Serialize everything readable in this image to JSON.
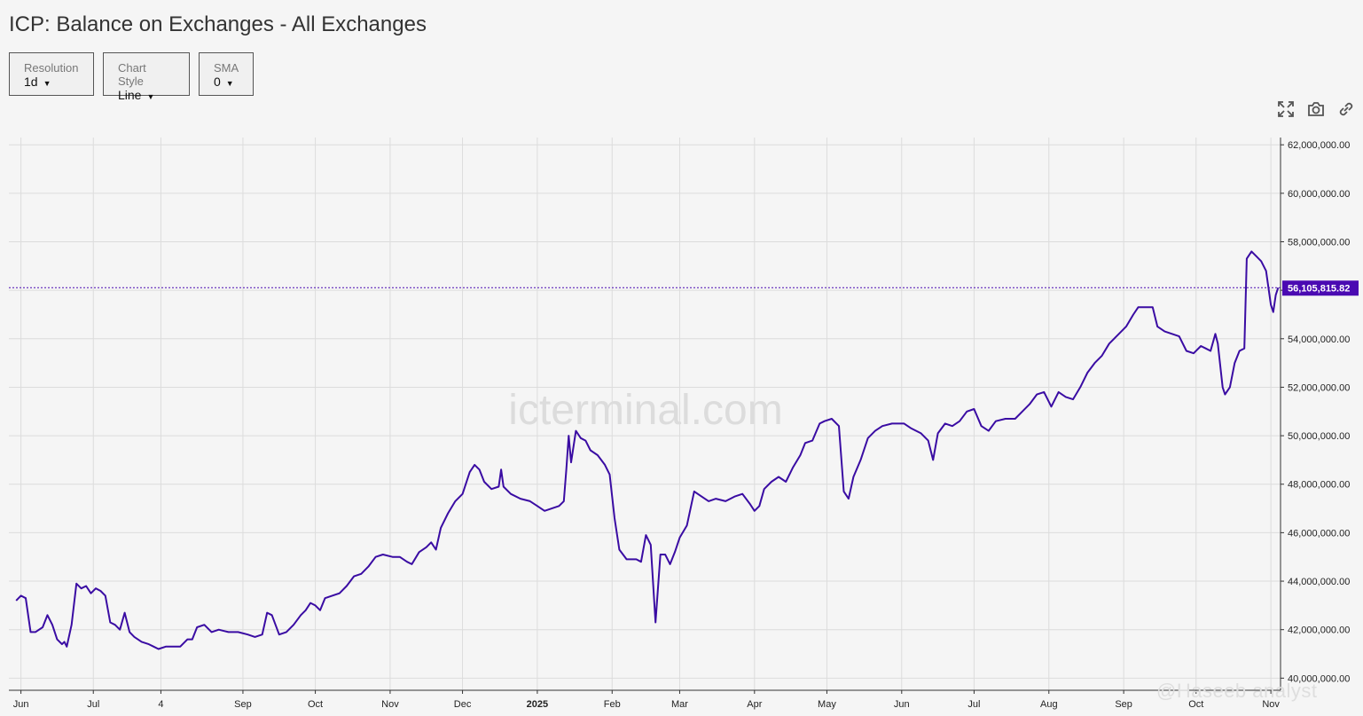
{
  "title": "ICP: Balance on Exchanges - All Exchanges",
  "controls": {
    "resolution": {
      "label": "Resolution",
      "value": "1d"
    },
    "chart_style": {
      "label": "Chart Style",
      "value": "Line"
    },
    "sma": {
      "label": "SMA",
      "value": "0"
    }
  },
  "toolbar": {
    "icons": [
      "fullscreen-icon",
      "camera-icon",
      "link-icon"
    ]
  },
  "watermark": "icterminal.com",
  "credit": "@Haseeb analyst",
  "colors": {
    "line": "#3a0ca3",
    "price_tag": "#4a0ab2",
    "grid": "#dcdcdc",
    "background": "#f5f5f5"
  },
  "chart_data": {
    "type": "line",
    "title": "ICP: Balance on Exchanges - All Exchanges",
    "ylim": [
      39500000,
      62300000
    ],
    "y_ticks": [
      40000000,
      42000000,
      44000000,
      46000000,
      48000000,
      50000000,
      52000000,
      54000000,
      56000000,
      58000000,
      60000000,
      62000000
    ],
    "y_tick_labels": [
      "40,000,000.00",
      "42,000,000.00",
      "44,000,000.00",
      "46,000,000.00",
      "48,000,000.00",
      "50,000,000.00",
      "52,000,000.00",
      "54,000,000.00",
      "56,000,000.00",
      "58,000,000.00",
      "60,000,000.00",
      "62,000,000.00"
    ],
    "x_range": [
      "2024-05-27",
      "2025-11-05"
    ],
    "x_ticks": [
      {
        "date": "2024-06-01",
        "label": "Jun"
      },
      {
        "date": "2024-07-01",
        "label": "Jul"
      },
      {
        "date": "2024-07-29",
        "label": "4"
      },
      {
        "date": "2024-09-01",
        "label": "Sep"
      },
      {
        "date": "2024-10-01",
        "label": "Oct"
      },
      {
        "date": "2024-11-01",
        "label": "Nov"
      },
      {
        "date": "2024-12-01",
        "label": "Dec"
      },
      {
        "date": "2025-01-01",
        "label": "2025",
        "bold": true
      },
      {
        "date": "2025-02-01",
        "label": "Feb"
      },
      {
        "date": "2025-03-01",
        "label": "Mar"
      },
      {
        "date": "2025-04-01",
        "label": "Apr"
      },
      {
        "date": "2025-05-01",
        "label": "May"
      },
      {
        "date": "2025-06-01",
        "label": "Jun"
      },
      {
        "date": "2025-07-01",
        "label": "Jul"
      },
      {
        "date": "2025-08-01",
        "label": "Aug"
      },
      {
        "date": "2025-09-01",
        "label": "Sep"
      },
      {
        "date": "2025-10-01",
        "label": "Oct"
      },
      {
        "date": "2025-11-01",
        "label": "Nov"
      }
    ],
    "last_value": 56105815.82,
    "last_value_label": "56,105,815.82",
    "grid": true,
    "series": [
      {
        "points": [
          [
            "2024-05-30",
            43200000
          ],
          [
            "2024-06-01",
            43400000
          ],
          [
            "2024-06-03",
            43300000
          ],
          [
            "2024-06-05",
            41900000
          ],
          [
            "2024-06-07",
            41900000
          ],
          [
            "2024-06-10",
            42100000
          ],
          [
            "2024-06-12",
            42600000
          ],
          [
            "2024-06-14",
            42200000
          ],
          [
            "2024-06-16",
            41600000
          ],
          [
            "2024-06-18",
            41400000
          ],
          [
            "2024-06-19",
            41500000
          ],
          [
            "2024-06-20",
            41300000
          ],
          [
            "2024-06-22",
            42200000
          ],
          [
            "2024-06-24",
            43900000
          ],
          [
            "2024-06-26",
            43700000
          ],
          [
            "2024-06-28",
            43800000
          ],
          [
            "2024-06-30",
            43500000
          ],
          [
            "2024-07-02",
            43700000
          ],
          [
            "2024-07-04",
            43600000
          ],
          [
            "2024-07-06",
            43400000
          ],
          [
            "2024-07-08",
            42300000
          ],
          [
            "2024-07-10",
            42200000
          ],
          [
            "2024-07-12",
            42000000
          ],
          [
            "2024-07-14",
            42700000
          ],
          [
            "2024-07-16",
            41900000
          ],
          [
            "2024-07-18",
            41700000
          ],
          [
            "2024-07-21",
            41500000
          ],
          [
            "2024-07-24",
            41400000
          ],
          [
            "2024-07-26",
            41300000
          ],
          [
            "2024-07-28",
            41200000
          ],
          [
            "2024-07-31",
            41300000
          ],
          [
            "2024-08-03",
            41300000
          ],
          [
            "2024-08-06",
            41300000
          ],
          [
            "2024-08-09",
            41600000
          ],
          [
            "2024-08-11",
            41600000
          ],
          [
            "2024-08-13",
            42100000
          ],
          [
            "2024-08-16",
            42200000
          ],
          [
            "2024-08-19",
            41900000
          ],
          [
            "2024-08-22",
            42000000
          ],
          [
            "2024-08-26",
            41900000
          ],
          [
            "2024-08-30",
            41900000
          ],
          [
            "2024-09-03",
            41800000
          ],
          [
            "2024-09-06",
            41700000
          ],
          [
            "2024-09-09",
            41800000
          ],
          [
            "2024-09-11",
            42700000
          ],
          [
            "2024-09-13",
            42600000
          ],
          [
            "2024-09-16",
            41800000
          ],
          [
            "2024-09-19",
            41900000
          ],
          [
            "2024-09-22",
            42200000
          ],
          [
            "2024-09-25",
            42600000
          ],
          [
            "2024-09-27",
            42800000
          ],
          [
            "2024-09-29",
            43100000
          ],
          [
            "2024-10-01",
            43000000
          ],
          [
            "2024-10-03",
            42800000
          ],
          [
            "2024-10-05",
            43300000
          ],
          [
            "2024-10-08",
            43400000
          ],
          [
            "2024-10-11",
            43500000
          ],
          [
            "2024-10-14",
            43800000
          ],
          [
            "2024-10-17",
            44200000
          ],
          [
            "2024-10-20",
            44300000
          ],
          [
            "2024-10-23",
            44600000
          ],
          [
            "2024-10-26",
            45000000
          ],
          [
            "2024-10-29",
            45100000
          ],
          [
            "2024-11-02",
            45000000
          ],
          [
            "2024-11-05",
            45000000
          ],
          [
            "2024-11-08",
            44800000
          ],
          [
            "2024-11-10",
            44700000
          ],
          [
            "2024-11-13",
            45200000
          ],
          [
            "2024-11-16",
            45400000
          ],
          [
            "2024-11-18",
            45600000
          ],
          [
            "2024-11-20",
            45300000
          ],
          [
            "2024-11-22",
            46200000
          ],
          [
            "2024-11-25",
            46800000
          ],
          [
            "2024-11-28",
            47300000
          ],
          [
            "2024-12-01",
            47600000
          ],
          [
            "2024-12-04",
            48500000
          ],
          [
            "2024-12-06",
            48800000
          ],
          [
            "2024-12-08",
            48600000
          ],
          [
            "2024-12-10",
            48100000
          ],
          [
            "2024-12-13",
            47800000
          ],
          [
            "2024-12-16",
            47900000
          ],
          [
            "2024-12-17",
            48600000
          ],
          [
            "2024-12-18",
            47900000
          ],
          [
            "2024-12-21",
            47600000
          ],
          [
            "2024-12-25",
            47400000
          ],
          [
            "2024-12-29",
            47300000
          ],
          [
            "2025-01-01",
            47100000
          ],
          [
            "2025-01-04",
            46900000
          ],
          [
            "2025-01-07",
            47000000
          ],
          [
            "2025-01-10",
            47100000
          ],
          [
            "2025-01-12",
            47300000
          ],
          [
            "2025-01-13",
            48600000
          ],
          [
            "2025-01-14",
            50000000
          ],
          [
            "2025-01-15",
            48900000
          ],
          [
            "2025-01-17",
            50200000
          ],
          [
            "2025-01-19",
            49900000
          ],
          [
            "2025-01-21",
            49800000
          ],
          [
            "2025-01-23",
            49400000
          ],
          [
            "2025-01-26",
            49200000
          ],
          [
            "2025-01-29",
            48800000
          ],
          [
            "2025-01-31",
            48400000
          ],
          [
            "2025-02-02",
            46600000
          ],
          [
            "2025-02-04",
            45300000
          ],
          [
            "2025-02-07",
            44900000
          ],
          [
            "2025-02-09",
            44900000
          ],
          [
            "2025-02-11",
            44900000
          ],
          [
            "2025-02-13",
            44800000
          ],
          [
            "2025-02-15",
            45900000
          ],
          [
            "2025-02-17",
            45500000
          ],
          [
            "2025-02-19",
            42300000
          ],
          [
            "2025-02-21",
            45100000
          ],
          [
            "2025-02-23",
            45100000
          ],
          [
            "2025-02-25",
            44700000
          ],
          [
            "2025-02-27",
            45200000
          ],
          [
            "2025-03-01",
            45800000
          ],
          [
            "2025-03-04",
            46300000
          ],
          [
            "2025-03-07",
            47700000
          ],
          [
            "2025-03-10",
            47500000
          ],
          [
            "2025-03-13",
            47300000
          ],
          [
            "2025-03-16",
            47400000
          ],
          [
            "2025-03-20",
            47300000
          ],
          [
            "2025-03-24",
            47500000
          ],
          [
            "2025-03-27",
            47600000
          ],
          [
            "2025-03-30",
            47200000
          ],
          [
            "2025-04-01",
            46900000
          ],
          [
            "2025-04-03",
            47100000
          ],
          [
            "2025-04-05",
            47800000
          ],
          [
            "2025-04-08",
            48100000
          ],
          [
            "2025-04-11",
            48300000
          ],
          [
            "2025-04-14",
            48100000
          ],
          [
            "2025-04-17",
            48700000
          ],
          [
            "2025-04-20",
            49200000
          ],
          [
            "2025-04-22",
            49700000
          ],
          [
            "2025-04-25",
            49800000
          ],
          [
            "2025-04-28",
            50500000
          ],
          [
            "2025-04-30",
            50600000
          ],
          [
            "2025-05-03",
            50700000
          ],
          [
            "2025-05-06",
            50400000
          ],
          [
            "2025-05-08",
            47700000
          ],
          [
            "2025-05-10",
            47400000
          ],
          [
            "2025-05-12",
            48300000
          ],
          [
            "2025-05-15",
            49000000
          ],
          [
            "2025-05-18",
            49900000
          ],
          [
            "2025-05-21",
            50200000
          ],
          [
            "2025-05-24",
            50400000
          ],
          [
            "2025-05-28",
            50500000
          ],
          [
            "2025-06-02",
            50500000
          ],
          [
            "2025-06-05",
            50300000
          ],
          [
            "2025-06-09",
            50100000
          ],
          [
            "2025-06-12",
            49800000
          ],
          [
            "2025-06-14",
            49000000
          ],
          [
            "2025-06-16",
            50100000
          ],
          [
            "2025-06-19",
            50500000
          ],
          [
            "2025-06-22",
            50400000
          ],
          [
            "2025-06-25",
            50600000
          ],
          [
            "2025-06-28",
            51000000
          ],
          [
            "2025-07-01",
            51100000
          ],
          [
            "2025-07-04",
            50400000
          ],
          [
            "2025-07-07",
            50200000
          ],
          [
            "2025-07-10",
            50600000
          ],
          [
            "2025-07-14",
            50700000
          ],
          [
            "2025-07-18",
            50700000
          ],
          [
            "2025-07-21",
            51000000
          ],
          [
            "2025-07-24",
            51300000
          ],
          [
            "2025-07-27",
            51700000
          ],
          [
            "2025-07-30",
            51800000
          ],
          [
            "2025-08-02",
            51200000
          ],
          [
            "2025-08-05",
            51800000
          ],
          [
            "2025-08-08",
            51600000
          ],
          [
            "2025-08-11",
            51500000
          ],
          [
            "2025-08-14",
            52000000
          ],
          [
            "2025-08-17",
            52600000
          ],
          [
            "2025-08-20",
            53000000
          ],
          [
            "2025-08-23",
            53300000
          ],
          [
            "2025-08-26",
            53800000
          ],
          [
            "2025-08-29",
            54100000
          ],
          [
            "2025-09-02",
            54500000
          ],
          [
            "2025-09-05",
            55000000
          ],
          [
            "2025-09-07",
            55300000
          ],
          [
            "2025-09-10",
            55300000
          ],
          [
            "2025-09-13",
            55300000
          ],
          [
            "2025-09-15",
            54500000
          ],
          [
            "2025-09-18",
            54300000
          ],
          [
            "2025-09-21",
            54200000
          ],
          [
            "2025-09-24",
            54100000
          ],
          [
            "2025-09-27",
            53500000
          ],
          [
            "2025-09-30",
            53400000
          ],
          [
            "2025-10-03",
            53700000
          ],
          [
            "2025-10-05",
            53600000
          ],
          [
            "2025-10-07",
            53500000
          ],
          [
            "2025-10-09",
            54200000
          ],
          [
            "2025-10-10",
            53800000
          ],
          [
            "2025-10-12",
            52000000
          ],
          [
            "2025-10-13",
            51700000
          ],
          [
            "2025-10-15",
            52000000
          ],
          [
            "2025-10-17",
            53000000
          ],
          [
            "2025-10-19",
            53500000
          ],
          [
            "2025-10-21",
            53600000
          ],
          [
            "2025-10-22",
            57300000
          ],
          [
            "2025-10-24",
            57600000
          ],
          [
            "2025-10-26",
            57400000
          ],
          [
            "2025-10-28",
            57200000
          ],
          [
            "2025-10-30",
            56800000
          ],
          [
            "2025-11-01",
            55400000
          ],
          [
            "2025-11-02",
            55100000
          ],
          [
            "2025-11-03",
            55800000
          ],
          [
            "2025-11-04",
            56105815.82
          ]
        ]
      }
    ]
  }
}
